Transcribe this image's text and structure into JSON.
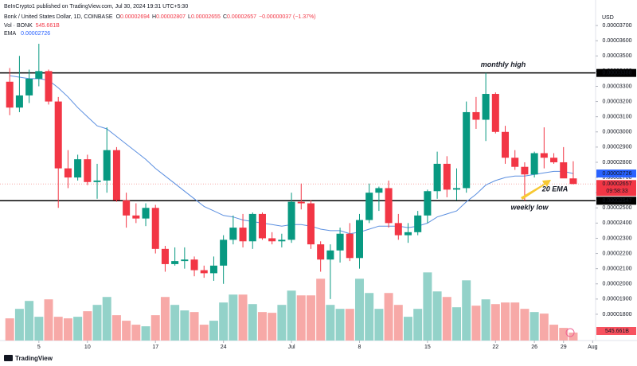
{
  "header": {
    "publisher": "BeInCrypto1 published on TradingView.com, Jul 30, 2024 19:31 UTC+5:30",
    "symbol": "Bonk / United States Dollar, 1D, COINBASE",
    "o": "O",
    "h": "H",
    "l": "L",
    "c": "C",
    "change": "−0.00000037 (−1.37%)",
    "currency": "USD"
  },
  "footer": {
    "brand": "TradingView"
  },
  "chart_data": {
    "type": "candlestick",
    "candles": {
      "open": [
        3.33e-05,
        3.16e-05,
        3.24e-05,
        3.35e-05,
        3.4e-05,
        3.2e-05,
        2.76e-05,
        2.7e-05,
        2.82e-05,
        2.67e-05,
        2.68e-05,
        2.88e-05,
        2.55e-05,
        2.45e-05,
        2.43e-05,
        2.5e-05,
        2.23e-05,
        2.13e-05,
        2.15e-05,
        2.16e-05,
        2.09e-05,
        2.07e-05,
        2.12e-05,
        2.29e-05,
        2.37e-05,
        2.28e-05,
        2.46e-05,
        2.3e-05,
        2.28e-05,
        2.29e-05,
        2.54e-05,
        2.53e-05,
        2.26e-05,
        2.16e-05,
        2.22e-05,
        2.33e-05,
        2.17e-05,
        2.42e-05,
        2.6e-05,
        2.63e-05,
        2.4e-05,
        2.32e-05,
        2.34e-05,
        2.45e-05,
        2.61e-05,
        2.79e-05,
        2.62e-05,
        2.63e-05,
        3.13e-05,
        3.08e-05,
        3.25e-05,
        3e-05,
        2.83e-05,
        2.77e-05,
        2.72e-05,
        2.86e-05,
        2.83e-05,
        2.8e-05,
        2.694e-05
      ],
      "high": [
        3.42e-05,
        3.5e-05,
        3.41e-05,
        3.58e-05,
        3.41e-05,
        3.23e-05,
        2.88e-05,
        2.85e-05,
        2.85e-05,
        2.79e-05,
        3.03e-05,
        2.9e-05,
        2.6e-05,
        2.53e-05,
        2.53e-05,
        2.52e-05,
        2.25e-05,
        2.24e-05,
        2.24e-05,
        2.18e-05,
        2.12e-05,
        2.18e-05,
        2.32e-05,
        2.45e-05,
        2.46e-05,
        2.47e-05,
        2.47e-05,
        2.34e-05,
        2.33e-05,
        2.6e-05,
        2.66e-05,
        2.55e-05,
        2.28e-05,
        2.26e-05,
        2.37e-05,
        2.4e-05,
        2.46e-05,
        2.66e-05,
        2.64e-05,
        2.68e-05,
        2.46e-05,
        2.4e-05,
        2.48e-05,
        2.62e-05,
        2.87e-05,
        2.84e-05,
        2.76e-05,
        3.2e-05,
        3.23e-05,
        3.388e-05,
        3.26e-05,
        3.04e-05,
        2.88e-05,
        2.8e-05,
        2.87e-05,
        3.03e-05,
        2.86e-05,
        2.9e-05,
        2.807e-05
      ],
      "low": [
        3.11e-05,
        3.13e-05,
        3.19e-05,
        3.3e-05,
        3.18e-05,
        2.5e-05,
        2.63e-05,
        2.68e-05,
        2.65e-05,
        2.56e-05,
        2.6e-05,
        2.54e-05,
        2.37e-05,
        2.4e-05,
        2.38e-05,
        2.2e-05,
        2.08e-05,
        2.12e-05,
        2.1e-05,
        2.05e-05,
        2.04e-05,
        2.02e-05,
        2e-05,
        2.26e-05,
        2.24e-05,
        2.23e-05,
        2.29e-05,
        2.26e-05,
        2.24e-05,
        2.27e-05,
        2.49e-05,
        2.23e-05,
        2.08e-05,
        1.9e-05,
        2.14e-05,
        2.15e-05,
        2.1e-05,
        2.4e-05,
        2.48e-05,
        2.37e-05,
        2.29e-05,
        2.27e-05,
        2.32e-05,
        2.4e-05,
        2.56e-05,
        2.57e-05,
        2.55e-05,
        2.6e-05,
        3.02e-05,
        2.94e-05,
        2.99e-05,
        2.79e-05,
        2.75e-05,
        2.547e-05,
        2.7e-05,
        2.76e-05,
        2.79e-05,
        2.7e-05,
        2.655e-05
      ],
      "close": [
        3.16e-05,
        3.24e-05,
        3.35e-05,
        3.4e-05,
        3.2e-05,
        2.76e-05,
        2.7e-05,
        2.82e-05,
        2.67e-05,
        2.68e-05,
        2.88e-05,
        2.55e-05,
        2.45e-05,
        2.43e-05,
        2.5e-05,
        2.23e-05,
        2.13e-05,
        2.15e-05,
        2.16e-05,
        2.09e-05,
        2.07e-05,
        2.12e-05,
        2.29e-05,
        2.37e-05,
        2.28e-05,
        2.46e-05,
        2.3e-05,
        2.28e-05,
        2.29e-05,
        2.54e-05,
        2.53e-05,
        2.26e-05,
        2.16e-05,
        2.22e-05,
        2.33e-05,
        2.17e-05,
        2.42e-05,
        2.6e-05,
        2.63e-05,
        2.4e-05,
        2.32e-05,
        2.34e-05,
        2.45e-05,
        2.61e-05,
        2.79e-05,
        2.62e-05,
        2.63e-05,
        3.13e-05,
        3.08e-05,
        3.25e-05,
        3e-05,
        2.83e-05,
        2.77e-05,
        2.72e-05,
        2.86e-05,
        2.83e-05,
        2.8e-05,
        2.694e-05,
        2.657e-05
      ],
      "up_color": "#089981",
      "down_color": "#f23645"
    },
    "volume": {
      "name": "Vol · BONK",
      "values": [
        1528000000000.0,
        2183000000000.0,
        2728000000000.0,
        1637000000000.0,
        2837000000000.0,
        1637000000000.0,
        1528000000000.0,
        1637000000000.0,
        2019000000000.0,
        2455000000000.0,
        3001000000000.0,
        1746000000000.0,
        1364000000000.0,
        1091000000000.0,
        982000000000.0,
        1746000000000.0,
        3001000000000.0,
        2455000000000.0,
        2074000000000.0,
        1964000000000.0,
        1091000000000.0,
        1364000000000.0,
        2619000000000.0,
        3165000000000.0,
        3165000000000.0,
        2510000000000.0,
        1964000000000.0,
        1910000000000.0,
        2455000000000.0,
        3438000000000.0,
        3110000000000.0,
        3110000000000.0,
        4256000000000.0,
        2455000000000.0,
        2183000000000.0,
        2183000000000.0,
        4256000000000.0,
        3274000000000.0,
        2183000000000.0,
        3274000000000.0,
        2455000000000.0,
        1637000000000.0,
        2183000000000.0,
        4693000000000.0,
        3383000000000.0,
        3001000000000.0,
        2292000000000.0,
        4147000000000.0,
        2401000000000.0,
        2837000000000.0,
        2510000000000.0,
        2619000000000.0,
        2619000000000.0,
        2183000000000.0,
        1964000000000.0,
        1855000000000.0,
        1091000000000.0,
        873000000000.0,
        545661000000.0
      ],
      "value_labels": [
        null,
        null,
        null,
        null,
        null,
        null,
        null,
        null,
        null,
        null,
        null,
        null,
        null,
        null,
        null,
        null,
        null,
        null,
        null,
        null,
        null,
        null,
        null,
        null,
        null,
        null,
        null,
        null,
        null,
        null,
        null,
        null,
        null,
        null,
        null,
        null,
        null,
        null,
        null,
        null,
        null,
        null,
        null,
        null,
        null,
        null,
        null,
        null,
        null,
        null,
        null,
        null,
        null,
        null,
        null,
        null,
        null,
        null,
        "545.661B"
      ],
      "up_color": "#93d2c9",
      "down_color": "#f7a9a7",
      "ylim": [
        0,
        8000000000000.0
      ]
    },
    "ema": {
      "name": "EMA",
      "color": "#5b8fe0",
      "values": [
        3.37e-05,
        3.36e-05,
        3.35e-05,
        3.35e-05,
        3.34e-05,
        3.29e-05,
        3.23e-05,
        3.16e-05,
        3.1e-05,
        3.04e-05,
        3.02e-05,
        2.97e-05,
        2.92e-05,
        2.87e-05,
        2.82e-05,
        2.76e-05,
        2.71e-05,
        2.66e-05,
        2.61e-05,
        2.56e-05,
        2.51e-05,
        2.48e-05,
        2.45e-05,
        2.44e-05,
        2.42e-05,
        2.41e-05,
        2.4e-05,
        2.39e-05,
        2.38e-05,
        2.39e-05,
        2.39e-05,
        2.38e-05,
        2.36e-05,
        2.35e-05,
        2.35e-05,
        2.33e-05,
        2.34e-05,
        2.36e-05,
        2.38e-05,
        2.38e-05,
        2.38e-05,
        2.37e-05,
        2.38e-05,
        2.4e-05,
        2.44e-05,
        2.46e-05,
        2.48e-05,
        2.54e-05,
        2.59e-05,
        2.65e-05,
        2.68e-05,
        2.7e-05,
        2.71e-05,
        2.71e-05,
        2.72e-05,
        2.73e-05,
        2.74e-05,
        2.74e-05,
        2.726e-05
      ]
    },
    "ylim": [
      1.627e-05,
      3.868e-05
    ],
    "yticks": [
      {
        "value": 1.8e-05,
        "label": "0.00001800"
      },
      {
        "value": 1.9e-05,
        "label": "0.00001900"
      },
      {
        "value": 2e-05,
        "label": "0.00002000"
      },
      {
        "value": 2.1e-05,
        "label": "0.00002100"
      },
      {
        "value": 2.2e-05,
        "label": "0.00002200"
      },
      {
        "value": 2.3e-05,
        "label": "0.00002300"
      },
      {
        "value": 2.4e-05,
        "label": "0.00002400"
      },
      {
        "value": 2.5e-05,
        "label": "0.00002500"
      },
      {
        "value": 2.6e-05,
        "label": "0.00002600"
      },
      {
        "value": 2.7e-05,
        "label": "0.00002700"
      },
      {
        "value": 2.8e-05,
        "label": "0.00002800"
      },
      {
        "value": 2.9e-05,
        "label": "0.00002900"
      },
      {
        "value": 3e-05,
        "label": "0.00003000"
      },
      {
        "value": 3.1e-05,
        "label": "0.00003100"
      },
      {
        "value": 3.2e-05,
        "label": "0.00003200"
      },
      {
        "value": 3.3e-05,
        "label": "0.00003300"
      },
      {
        "value": 3.4e-05,
        "label": "0.00003400"
      },
      {
        "value": 3.5e-05,
        "label": "0.00003500"
      },
      {
        "value": 3.6e-05,
        "label": "0.00003600"
      },
      {
        "value": 3.7e-05,
        "label": "0.00003700"
      }
    ],
    "xlim": [
      -1,
      60.3
    ],
    "xticks": [
      {
        "value": 3,
        "label": "5"
      },
      {
        "value": 8,
        "label": "10"
      },
      {
        "value": 15,
        "label": "17"
      },
      {
        "value": 22,
        "label": "24"
      },
      {
        "value": 29,
        "label": "Jul"
      },
      {
        "value": 36,
        "label": "8"
      },
      {
        "value": 43,
        "label": "15"
      },
      {
        "value": 50,
        "label": "22"
      },
      {
        "value": 54,
        "label": "26"
      },
      {
        "value": 57,
        "label": "29"
      },
      {
        "value": 60,
        "label": "Aug"
      }
    ],
    "levels": [
      {
        "value": 3.388e-05,
        "annotation": "monthly high"
      },
      {
        "value": 2.547e-05,
        "annotation": "weekly low"
      }
    ],
    "ema_annotation": "20 EMA",
    "countdown": "09:58:33",
    "grid": false
  }
}
